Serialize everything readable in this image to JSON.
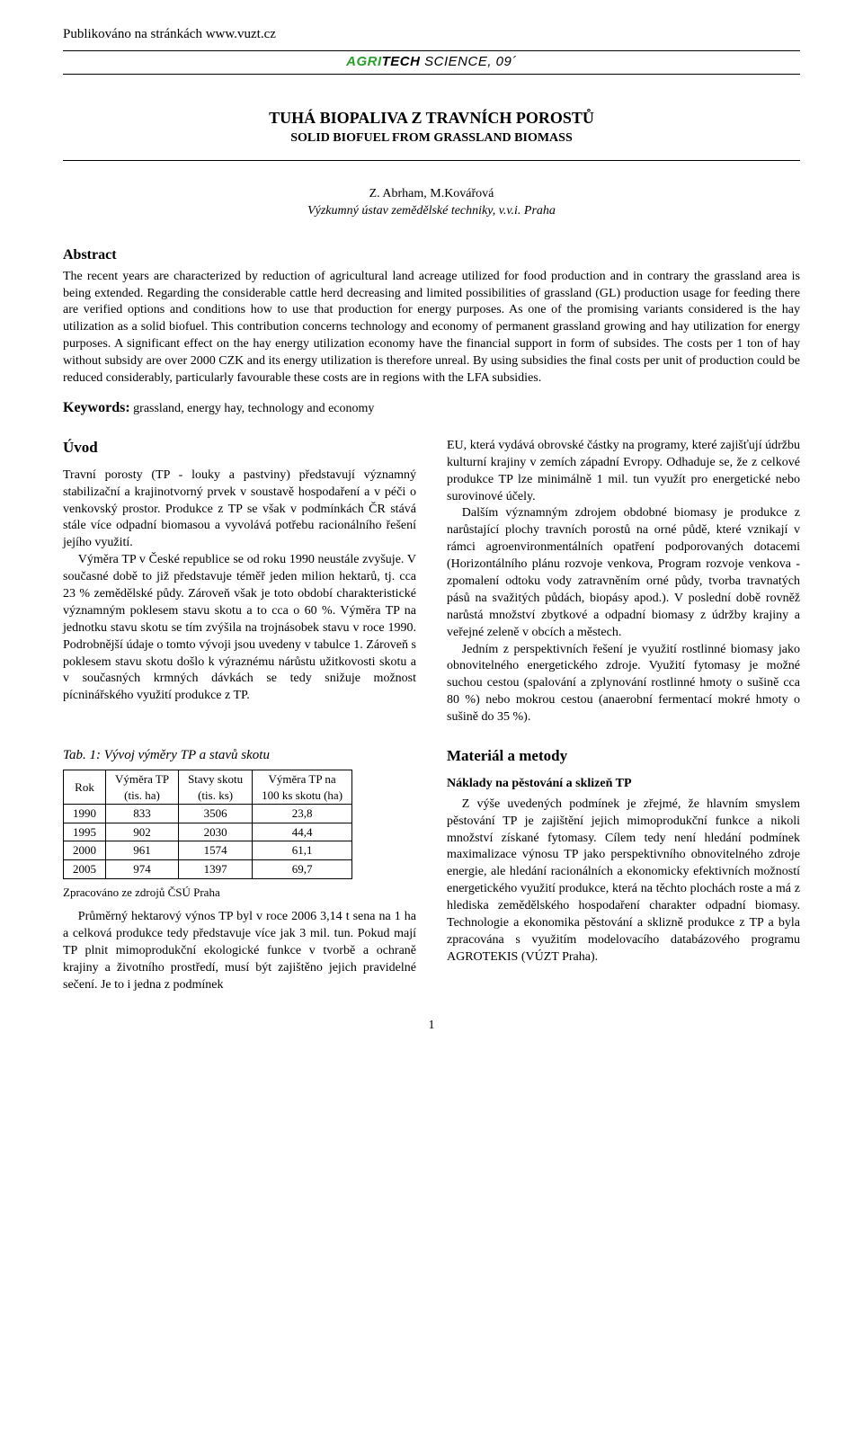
{
  "header": {
    "published_line": "Publikováno na stránkách www.vuzt.cz",
    "journal_agri": "AGRI",
    "journal_tech": "TECH",
    "journal_rest": " SCIENCE, 09´"
  },
  "title": {
    "cz": "TUHÁ BIOPALIVA Z TRAVNÍCH POROSTŮ",
    "en": "SOLID BIOFUEL FROM GRASSLAND BIOMASS"
  },
  "authors": {
    "names": "Z. Abrham, M.Kovářová",
    "affiliation": "Výzkumný ústav zemědělské techniky, v.v.i. Praha"
  },
  "abstract": {
    "heading": "Abstract",
    "text": "The recent years are characterized by reduction of agricultural land acreage utilized for food production and in contrary the grassland area is being extended. Regarding the considerable cattle herd decreasing and limited possibilities of grassland (GL) production usage for feeding there are verified options and conditions how to use that production for energy purposes. As one of the promising variants considered is the hay utilization as a solid biofuel. This contribution concerns technology and economy of permanent grassland growing and hay utilization for energy purposes. A significant effect on the hay energy utilization economy have the financial support in form of subsides. The costs per 1 ton of hay without subsidy are over 2000 CZK and its energy utilization is therefore unreal. By using subsidies the final costs per unit of production could be reduced considerably, particularly favourable these costs are in regions with the LFA subsidies.",
    "keywords_label": "Keywords:",
    "keywords_text": " grassland, energy hay, technology and economy"
  },
  "intro": {
    "heading": "Úvod",
    "left_paras": [
      "Travní porosty (TP - louky a pastviny) představují významný stabilizační a krajinotvorný prvek v soustavě hospodaření a v péči o venkovský prostor. Produkce z TP se však v podmínkách ČR stává stále více odpadní biomasou a vyvolává potřebu racionálního řešení jejího využití.",
      "Výměra TP v České republice se od roku 1990 neustále zvyšuje. V současné době to již představuje téměř jeden milion hektarů, tj. cca 23 % zemědělské půdy. Zároveň však je toto období charakteristické významným poklesem stavu skotu a to cca o 60 %. Výměra TP na jednotku stavu skotu se tím zvýšila na trojnásobek stavu v roce 1990. Podrobnější údaje o tomto vývoji jsou uvedeny v tabulce 1. Zároveň s poklesem stavu skotu došlo k výraznému nárůstu užitkovosti skotu a v současných krmných dávkách se tedy snižuje možnost pícninářského využití produkce z TP."
    ],
    "right_paras": [
      "EU, která vydává obrovské částky na programy, které zajišťují údržbu kulturní krajiny v zemích západní Evropy. Odhaduje se, že z celkové produkce TP lze minimálně 1 mil. tun využít pro energetické nebo surovinové účely.",
      "Dalším významným zdrojem obdobné biomasy je produkce z narůstající plochy travních porostů na orné půdě, které vznikají v rámci agroenvironmentálních opatření podporovaných dotacemi (Horizontálního plánu rozvoje venkova, Program rozvoje venkova - zpomalení odtoku vody zatravněním orné půdy, tvorba travnatých pásů na svažitých půdách, biopásy apod.). V poslední době rovněž narůstá množství zbytkové a odpadní biomasy z údržby krajiny a veřejné zeleně v obcích a městech.",
      "Jedním z perspektivních řešení je využití rostlinné biomasy jako obnovitelného energetického zdroje. Využití fytomasy je možné suchou cestou (spalování a zplynování rostlinné hmoty o sušině cca 80 %) nebo mokrou cestou (anaerobní fermentací mokré hmoty o sušině do 35 %)."
    ]
  },
  "table1": {
    "caption": "Tab. 1: Vývoj výměry TP a stavů skotu",
    "columns": [
      {
        "line1": "Rok",
        "line2": ""
      },
      {
        "line1": "Výměra TP",
        "line2": "(tis. ha)"
      },
      {
        "line1": "Stavy skotu",
        "line2": "(tis. ks)"
      },
      {
        "line1": "Výměra TP na",
        "line2": "100 ks skotu (ha)"
      }
    ],
    "rows": [
      [
        "1990",
        "833",
        "3506",
        "23,8"
      ],
      [
        "1995",
        "902",
        "2030",
        "44,4"
      ],
      [
        "2000",
        "961",
        "1574",
        "61,1"
      ],
      [
        "2005",
        "974",
        "1397",
        "69,7"
      ]
    ],
    "note": "Zpracováno ze zdrojů ČSÚ Praha",
    "after_paras": [
      "Průměrný hektarový výnos TP byl v roce 2006 3,14 t sena na 1 ha a celková produkce tedy představuje více jak 3 mil. tun. Pokud mají TP plnit mimoprodukční ekologické funkce v tvorbě a ochraně krajiny a životního prostředí, musí být zajištěno jejich pravidelné sečení. Je to i jedna z podmínek"
    ]
  },
  "materials": {
    "heading": "Materiál a metody",
    "subheading": "Náklady na pěstování a sklizeň TP",
    "paras": [
      "Z výše uvedených podmínek je zřejmé, že hlavním smyslem pěstování TP je zajištění jejich mimoprodukční funkce a nikoli množství získané fytomasy. Cílem tedy není hledání podmínek maximalizace výnosu TP jako perspektivního obnovitelného zdroje energie, ale hledání racionálních a ekonomicky efektivních možností energetického využití produkce, která na těchto plochách roste a má z hlediska zemědělského hospodaření charakter odpadní biomasy. Technologie a ekonomika pěstování a sklizně produkce z TP a byla zpracována s využitím modelovacího databázového programu AGROTEKIS (VÚZT Praha)."
    ]
  },
  "page_number": "1"
}
